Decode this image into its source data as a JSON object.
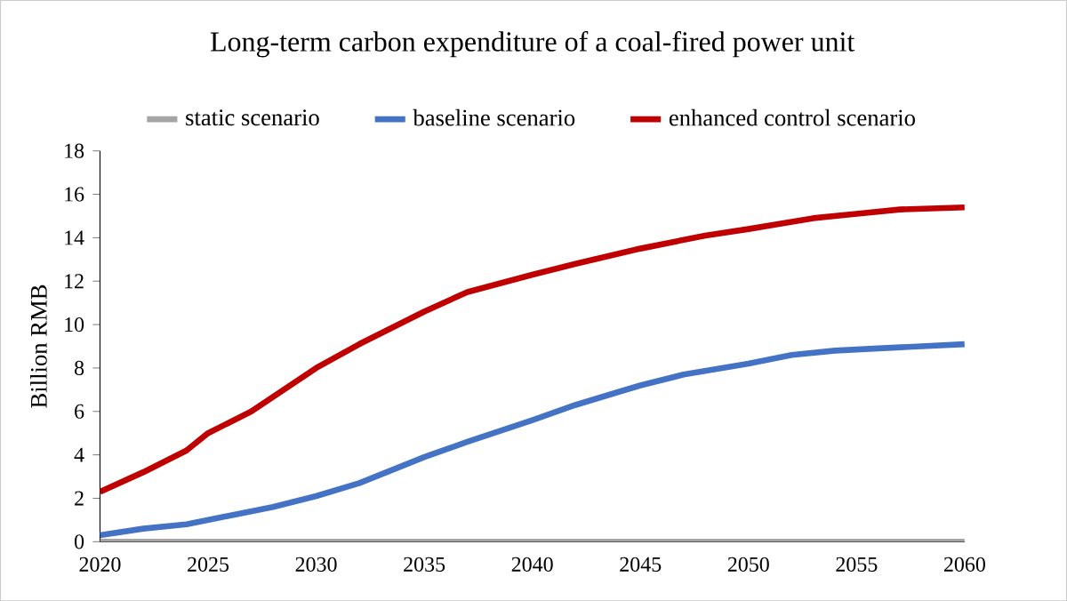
{
  "chart_data": {
    "type": "line",
    "title": "Long-term carbon expenditure of a coal-fired power unit",
    "ylabel": "Billion  RMB",
    "xlim": [
      2020,
      2060
    ],
    "xticks": [
      2020,
      2025,
      2030,
      2035,
      2040,
      2045,
      2050,
      2055,
      2060
    ],
    "ylim": [
      0,
      18
    ],
    "yticks": [
      0,
      2,
      4,
      6,
      8,
      10,
      12,
      14,
      16,
      18
    ],
    "grid": false,
    "legend": "top",
    "marker": "none",
    "line_style": "solid",
    "series": [
      {
        "name": "static scenario",
        "color": "#a5a5a5",
        "x": [
          2020,
          2030,
          2040,
          2050,
          2060
        ],
        "values": [
          0,
          0,
          0,
          0,
          0
        ]
      },
      {
        "name": "baseline scenario",
        "color": "#4472c4",
        "x": [
          2020,
          2022,
          2024,
          2026,
          2028,
          2030,
          2032,
          2034,
          2035,
          2037,
          2040,
          2042,
          2044,
          2045,
          2047,
          2050,
          2052,
          2054,
          2056,
          2058,
          2060
        ],
        "values": [
          0.3,
          0.6,
          0.8,
          1.2,
          1.6,
          2.1,
          2.7,
          3.5,
          3.9,
          4.6,
          5.6,
          6.3,
          6.9,
          7.2,
          7.7,
          8.2,
          8.6,
          8.8,
          8.9,
          9.0,
          9.1
        ]
      },
      {
        "name": "enhanced control scenario",
        "color": "#c00000",
        "x": [
          2020,
          2022,
          2024,
          2025,
          2027,
          2030,
          2032,
          2035,
          2037,
          2040,
          2042,
          2045,
          2048,
          2050,
          2053,
          2055,
          2057,
          2060
        ],
        "values": [
          2.3,
          3.2,
          4.2,
          5.0,
          6.0,
          8.0,
          9.1,
          10.6,
          11.5,
          12.3,
          12.8,
          13.5,
          14.1,
          14.4,
          14.9,
          15.1,
          15.3,
          15.4
        ]
      }
    ]
  }
}
